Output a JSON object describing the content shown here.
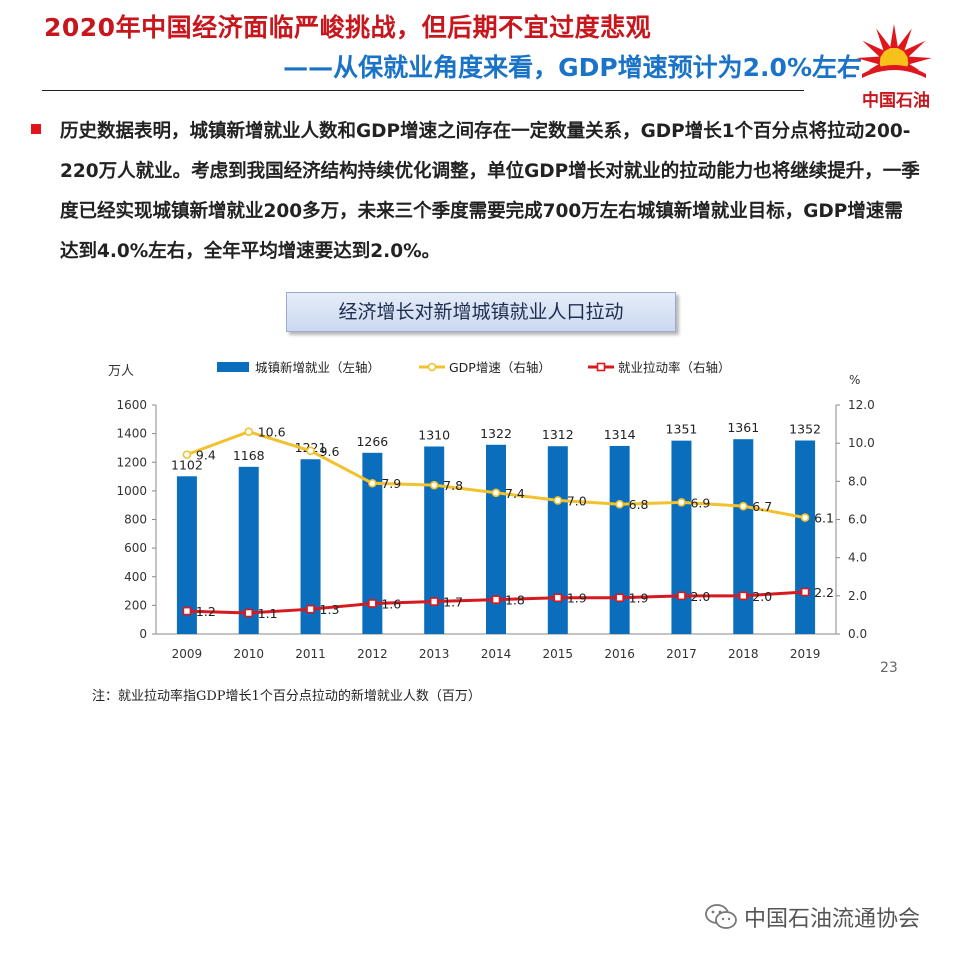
{
  "header": {
    "title": "2020年中国经济面临严峻挑战，但后期不宜过度悲观",
    "subtitle": "——从保就业角度来看，GDP增速预计为2.0%左右"
  },
  "logo": {
    "text": "中国石油"
  },
  "body": {
    "paragraph": "历史数据表明，城镇新增就业人数和GDP增速之间存在一定数量关系，GDP增长1个百分点将拉动200-220万人就业。考虑到我国经济结构持续优化调整，单位GDP增长对就业的拉动能力也将继续提升，一季度已经实现城镇新增就业200多万，未来三个季度需要完成700万左右城镇新增就业目标，GDP增速需达到4.0%左右，全年平均增速要达到2.0%。"
  },
  "chart_box_title": "经济增长对新增城镇就业人口拉动",
  "chart_data": {
    "type": "bar",
    "title": "经济增长对新增城镇就业人口拉动",
    "categories": [
      "2009",
      "2010",
      "2011",
      "2012",
      "2013",
      "2014",
      "2015",
      "2016",
      "2017",
      "2018",
      "2019"
    ],
    "left_axis": {
      "label": "万人",
      "range": [
        0,
        1600
      ],
      "ticks": [
        "0",
        "200",
        "400",
        "600",
        "800",
        "1000",
        "1200",
        "1400",
        "1600"
      ]
    },
    "right_axis": {
      "label": "%",
      "range": [
        0,
        12
      ],
      "ticks": [
        "0.0",
        "2.0",
        "4.0",
        "6.0",
        "8.0",
        "10.0",
        "12.0"
      ]
    },
    "series": [
      {
        "name": "城镇新增就业（左轴）",
        "type": "bar",
        "axis": "left",
        "color": "#0a6ebd",
        "values": [
          1102,
          1168,
          1221,
          1266,
          1310,
          1322,
          1312,
          1314,
          1351,
          1361,
          1352
        ],
        "labels": [
          "1102",
          "1168",
          "1221",
          "1266",
          "1310",
          "1322",
          "1312",
          "1314",
          "1351",
          "1361",
          "1352"
        ]
      },
      {
        "name": "GDP增速（右轴）",
        "type": "line",
        "axis": "right",
        "color": "#f2c12e",
        "values": [
          9.4,
          10.6,
          9.6,
          7.9,
          7.8,
          7.4,
          7.0,
          6.8,
          6.9,
          6.7,
          6.1
        ],
        "labels": [
          "9.4",
          "10.6",
          "9.6",
          "7.9",
          "7.8",
          "7.4",
          "7.0",
          "6.8",
          "6.9",
          "6.7",
          "6.1"
        ]
      },
      {
        "name": "就业拉动率（右轴）",
        "type": "line",
        "axis": "right",
        "color": "#d71920",
        "values": [
          1.2,
          1.1,
          1.3,
          1.6,
          1.7,
          1.8,
          1.9,
          1.9,
          2.0,
          2.0,
          2.2
        ],
        "labels": [
          "1.2",
          "1.1",
          "1.3",
          "1.6",
          "1.7",
          "1.8",
          "1.9",
          "1.9",
          "2.0",
          "2.0",
          "2.2"
        ]
      }
    ],
    "legend_position": "top",
    "grid": false
  },
  "page_number": "23",
  "note": "注：就业拉动率指GDP增长1个百分点拉动的新增就业人数（百万）",
  "watermark": {
    "text": "中国石油流通协会",
    "icon": "wechat-icon"
  },
  "colors": {
    "red": "#c8161d",
    "blue": "#1a73c6"
  }
}
